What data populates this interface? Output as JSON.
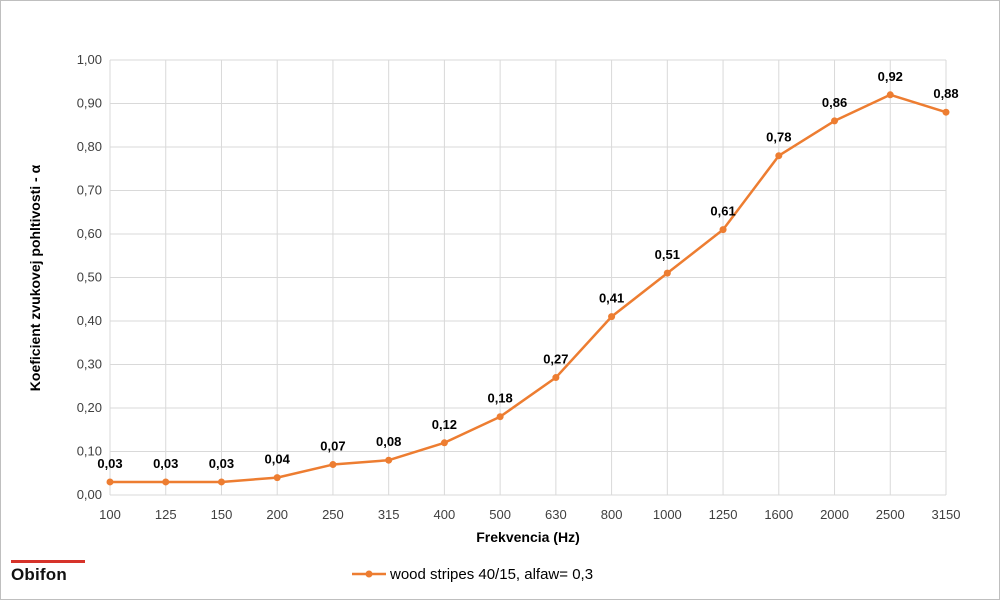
{
  "chart_data": {
    "type": "line",
    "categories": [
      "100",
      "125",
      "150",
      "200",
      "250",
      "315",
      "400",
      "500",
      "630",
      "800",
      "1000",
      "1250",
      "1600",
      "2000",
      "2500",
      "3150"
    ],
    "series": [
      {
        "name": "wood stripes 40/15, alfaw= 0,3",
        "values": [
          0.03,
          0.03,
          0.03,
          0.04,
          0.07,
          0.08,
          0.12,
          0.18,
          0.27,
          0.41,
          0.51,
          0.61,
          0.78,
          0.86,
          0.92,
          0.88
        ],
        "data_labels": [
          "0,03",
          "0,03",
          "0,03",
          "0,04",
          "0,07",
          "0,08",
          "0,12",
          "0,18",
          "0,27",
          "0,41",
          "0,51",
          "0,61",
          "0,78",
          "0,86",
          "0,92",
          "0,88"
        ],
        "color": "#ED7D31"
      }
    ],
    "xlabel": "Frekvencia (Hz)",
    "ylabel": "Koeficient zvukovej pohltivosti - α",
    "ylim": [
      0,
      1
    ],
    "yticks": [
      0,
      0.1,
      0.2,
      0.3,
      0.4,
      0.5,
      0.6,
      0.7,
      0.8,
      0.9,
      1.0
    ],
    "ytick_labels": [
      "0,00",
      "0,10",
      "0,20",
      "0,30",
      "0,40",
      "0,50",
      "0,60",
      "0,70",
      "0,80",
      "0,90",
      "1,00"
    ],
    "grid": true,
    "legend_position": "bottom"
  },
  "branding": {
    "logo_text": "Obifon",
    "logo_color": "#d6332a"
  }
}
